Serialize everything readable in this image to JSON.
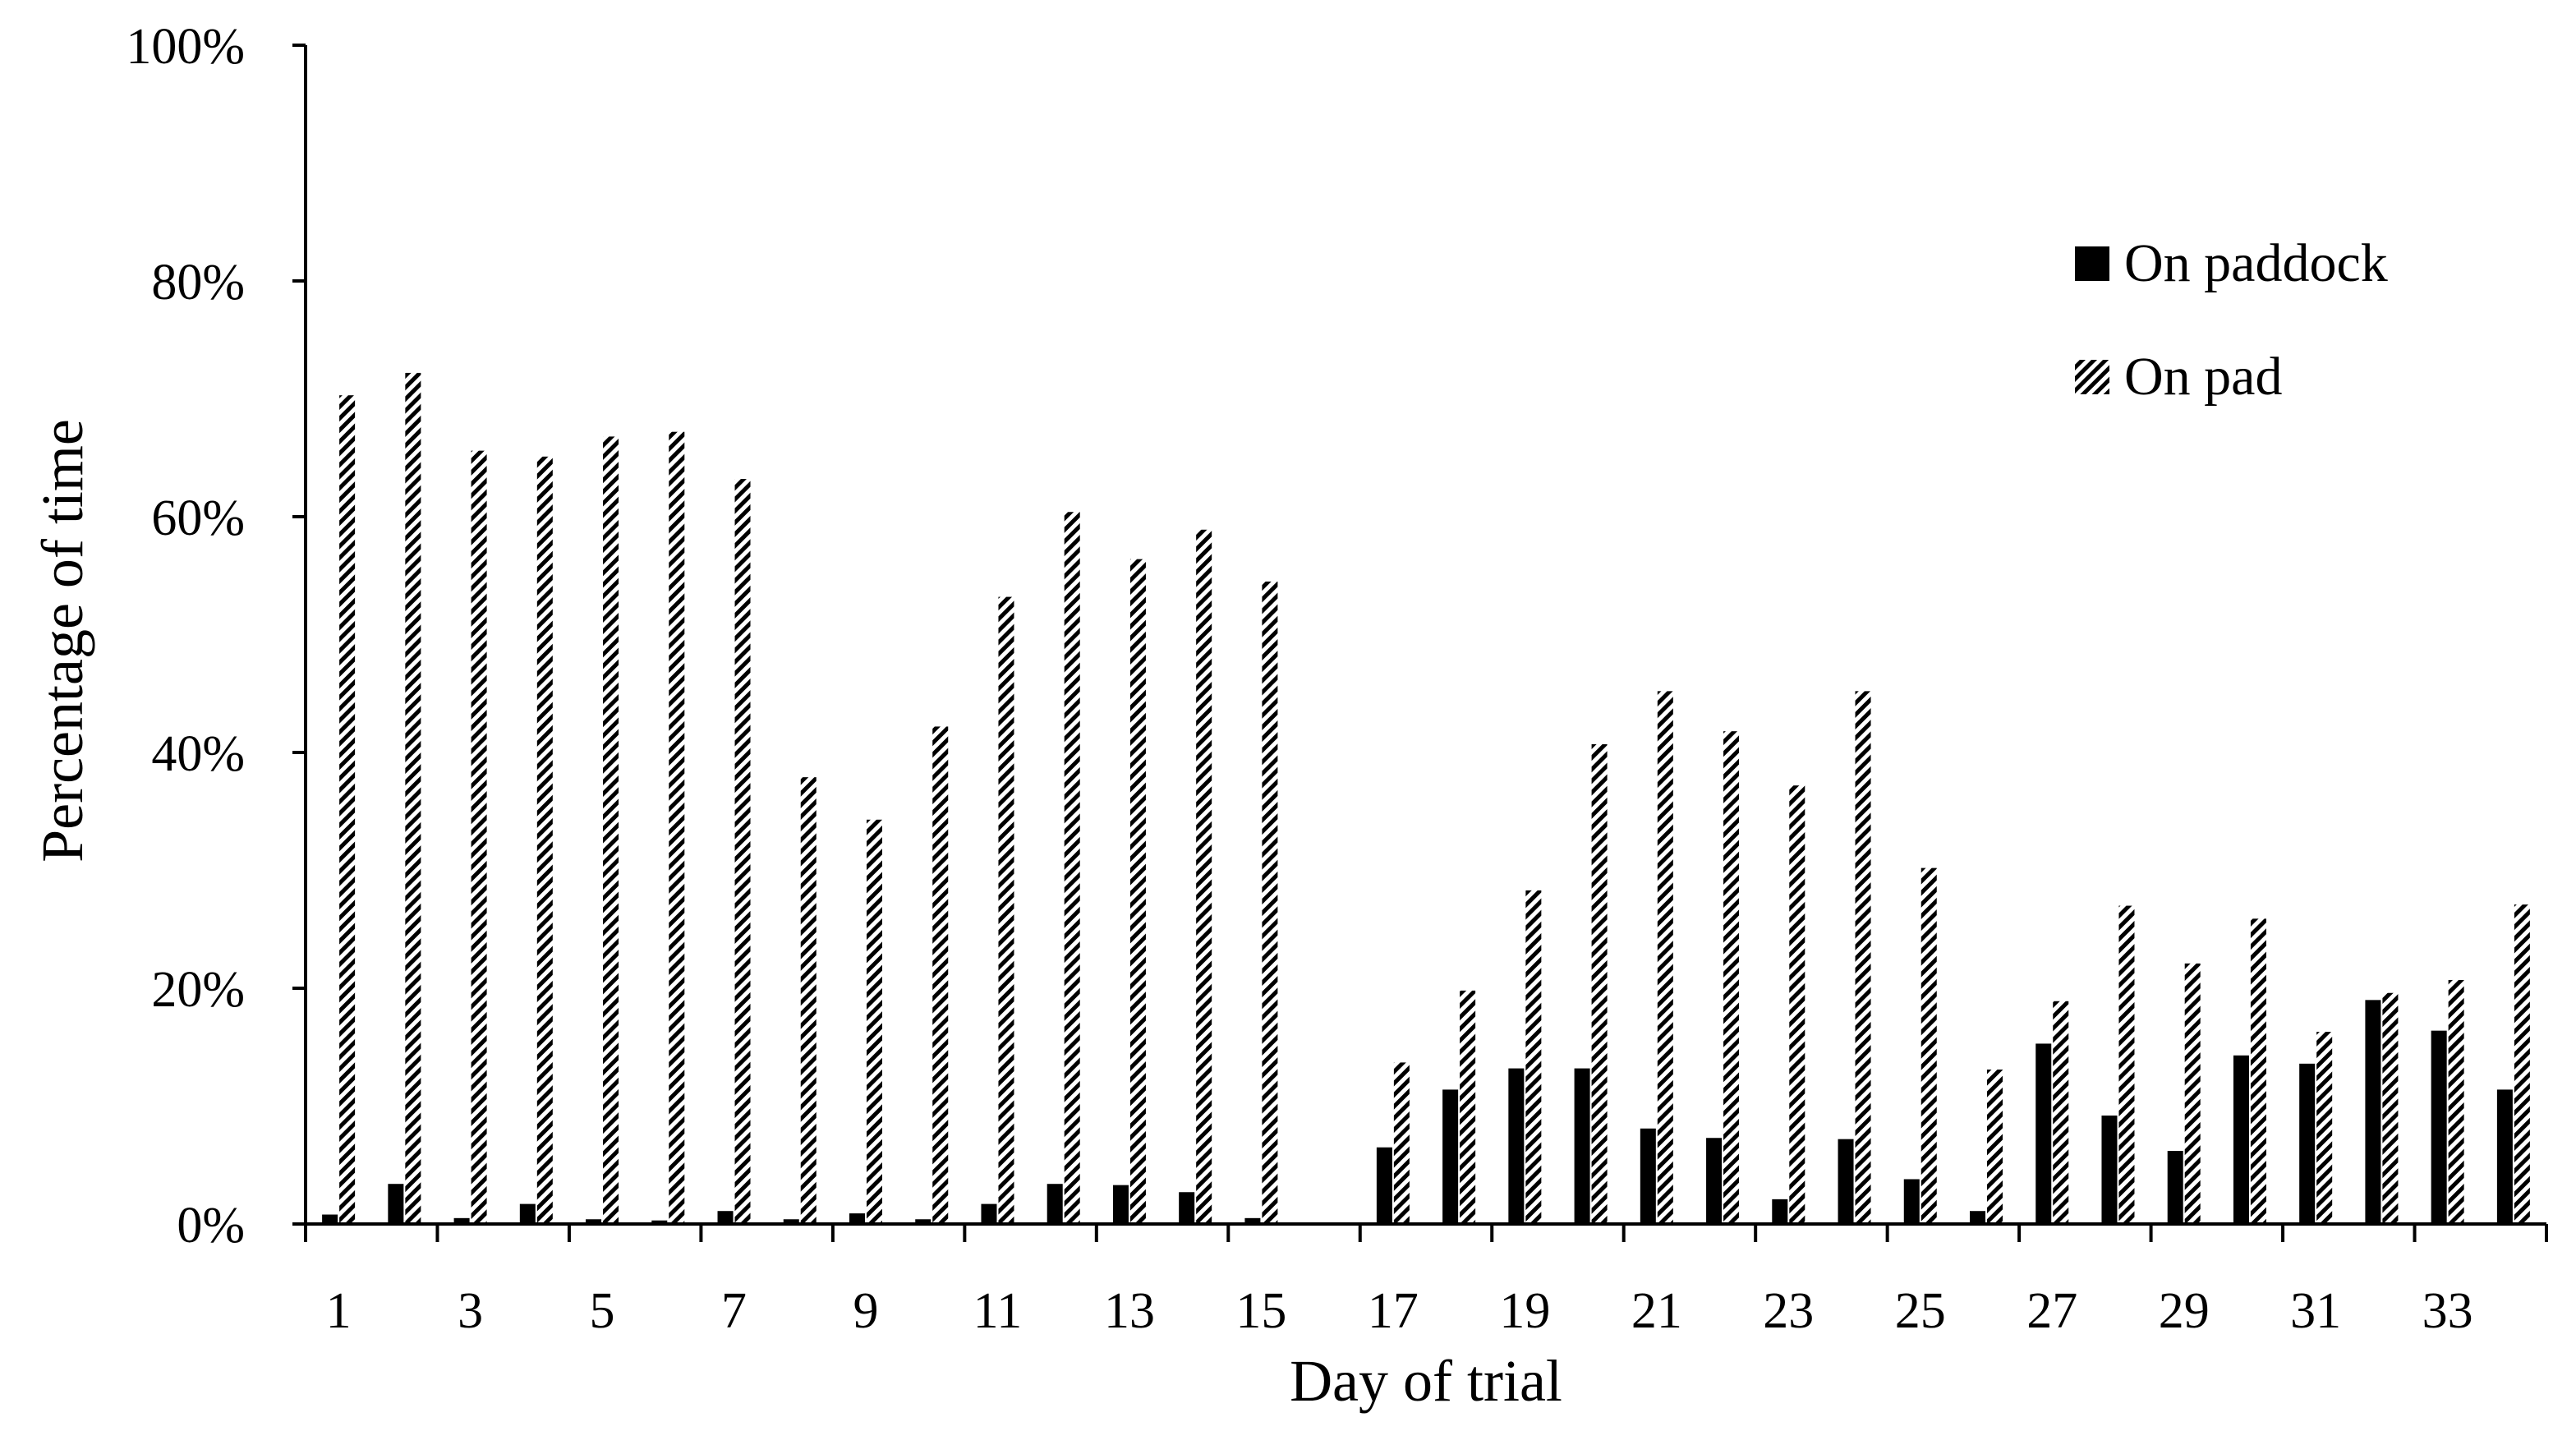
{
  "chart_data": {
    "type": "bar",
    "title": "",
    "xlabel": "Day of trial",
    "ylabel": "Percentage of time",
    "ylim": [
      0,
      100
    ],
    "y_ticks": [
      "0%",
      "20%",
      "40%",
      "60%",
      "80%",
      "100%"
    ],
    "y_tick_values": [
      0,
      20,
      40,
      60,
      80,
      100
    ],
    "categories": [
      1,
      2,
      3,
      4,
      5,
      6,
      7,
      8,
      9,
      10,
      11,
      12,
      13,
      14,
      15,
      16,
      17,
      18,
      19,
      20,
      21,
      22,
      23,
      24,
      25,
      26,
      27,
      28,
      29,
      30,
      31,
      32,
      33,
      34
    ],
    "x_tick_labels": [
      "1",
      "3",
      "5",
      "7",
      "9",
      "11",
      "13",
      "15",
      "17",
      "19",
      "21",
      "23",
      "25",
      "27",
      "29",
      "31",
      "33"
    ],
    "grid": false,
    "legend_position": "top-right",
    "series": [
      {
        "name": "On paddock",
        "color": "#000000",
        "pattern": "solid",
        "values": [
          0.8,
          3.4,
          0.5,
          1.7,
          0.4,
          0.3,
          1.1,
          0.4,
          0.9,
          0.4,
          1.7,
          3.4,
          3.3,
          2.7,
          0.5,
          0,
          6.5,
          11.4,
          13.2,
          13.2,
          8.1,
          7.3,
          2.1,
          7.2,
          3.8,
          1.1,
          15.3,
          9.2,
          6.2,
          14.3,
          13.6,
          19.0,
          16.4,
          11.4
        ]
      },
      {
        "name": "On pad",
        "color": "#000000",
        "pattern": "diagonal-hatch",
        "values": [
          70.3,
          72.2,
          65.6,
          65.1,
          66.8,
          67.2,
          63.2,
          37.9,
          34.3,
          42.2,
          53.2,
          60.4,
          56.4,
          58.9,
          54.5,
          0,
          13.7,
          19.8,
          28.3,
          40.7,
          45.2,
          41.8,
          37.2,
          45.2,
          30.2,
          13.1,
          18.9,
          27.0,
          22.1,
          25.9,
          16.3,
          19.6,
          20.7,
          27.1
        ]
      }
    ]
  }
}
